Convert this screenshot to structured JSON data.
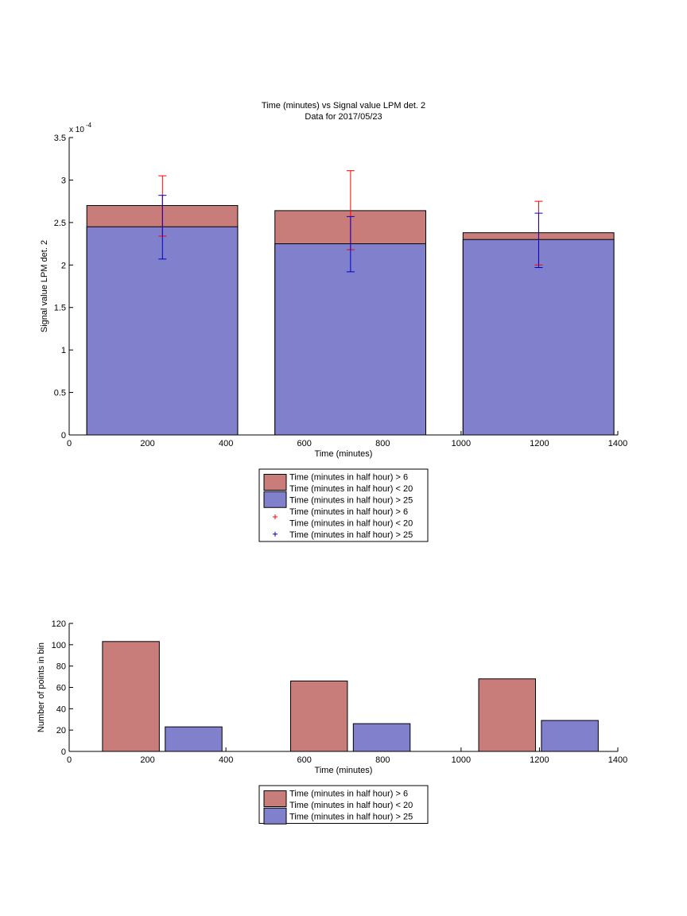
{
  "chart_data": [
    {
      "type": "bar",
      "title": "Time (minutes) vs Signal value LPM det. 2",
      "subtitle": "Data for 2017/05/23",
      "xlabel": "Time (minutes)",
      "ylabel": "Signal value LPM det. 2",
      "y_exponent_label": "x 10",
      "y_exponent_power": "-4",
      "xlim": [
        0,
        1400
      ],
      "ylim": [
        0,
        3.5
      ],
      "x_ticks": [
        0,
        200,
        400,
        600,
        800,
        1000,
        1200,
        1400
      ],
      "x_tick_labels": [
        "0",
        "200",
        "400",
        "600",
        "800",
        "1000",
        "1200",
        "1400"
      ],
      "y_ticks": [
        0,
        0.5,
        1,
        1.5,
        2,
        2.5,
        3,
        3.5
      ],
      "y_tick_labels": [
        "0",
        "0.5",
        "1",
        "1.5",
        "2",
        "2.5",
        "3",
        "3.5"
      ],
      "grid": false,
      "legend_position": "below",
      "bars": [
        {
          "x0": 45,
          "x1": 430,
          "red": 2.7,
          "blue": 2.45
        },
        {
          "x0": 525,
          "x1": 910,
          "red": 2.64,
          "blue": 2.25
        },
        {
          "x0": 1005,
          "x1": 1390,
          "red": 2.38,
          "blue": 2.3
        }
      ],
      "error_bars": [
        {
          "series": "red",
          "x": 238,
          "low": 2.34,
          "high": 3.05
        },
        {
          "series": "blue",
          "x": 238,
          "low": 2.07,
          "high": 2.82
        },
        {
          "series": "red",
          "x": 718,
          "low": 2.18,
          "high": 3.11
        },
        {
          "series": "blue",
          "x": 718,
          "low": 1.92,
          "high": 2.57
        },
        {
          "series": "red",
          "x": 1198,
          "low": 2.0,
          "high": 2.75
        },
        {
          "series": "blue",
          "x": 1198,
          "low": 1.97,
          "high": 2.61
        }
      ],
      "legend": [
        {
          "kind": "patch",
          "color": "#c97d7b",
          "lines": [
            "Time (minutes in half hour) > 6",
            "Time (minutes in half hour) < 20"
          ]
        },
        {
          "kind": "patch",
          "color": "#8080cc",
          "lines": [
            "Time (minutes in half hour) > 25"
          ]
        },
        {
          "kind": "marker",
          "color": "#ff0000",
          "lines": [
            "Time (minutes in half hour) > 6",
            "Time (minutes in half hour) < 20"
          ]
        },
        {
          "kind": "marker",
          "color": "#0000cc",
          "lines": [
            "Time (minutes in half hour) > 25"
          ]
        }
      ]
    },
    {
      "type": "bar",
      "xlabel": "Time (minutes)",
      "ylabel": "Number of points in bin",
      "xlim": [
        0,
        1400
      ],
      "ylim": [
        0,
        120
      ],
      "x_ticks": [
        0,
        200,
        400,
        600,
        800,
        1000,
        1200,
        1400
      ],
      "x_tick_labels": [
        "0",
        "200",
        "400",
        "600",
        "800",
        "1000",
        "1200",
        "1400"
      ],
      "y_ticks": [
        0,
        20,
        40,
        60,
        80,
        100,
        120
      ],
      "y_tick_labels": [
        "0",
        "20",
        "40",
        "60",
        "80",
        "100",
        "120"
      ],
      "grid": false,
      "legend_position": "below",
      "bars": [
        {
          "series": "red",
          "x0": 85,
          "x1": 230,
          "value": 103
        },
        {
          "series": "blue",
          "x0": 245,
          "x1": 390,
          "value": 23
        },
        {
          "series": "red",
          "x0": 565,
          "x1": 710,
          "value": 66
        },
        {
          "series": "blue",
          "x0": 725,
          "x1": 870,
          "value": 26
        },
        {
          "series": "red",
          "x0": 1045,
          "x1": 1190,
          "value": 68
        },
        {
          "series": "blue",
          "x0": 1205,
          "x1": 1350,
          "value": 29
        }
      ],
      "legend": [
        {
          "kind": "patch",
          "color": "#c97d7b",
          "lines": [
            "Time (minutes in half hour) > 6",
            "Time (minutes in half hour) < 20"
          ]
        },
        {
          "kind": "patch",
          "color": "#8080cc",
          "lines": [
            "Time (minutes in half hour) > 25"
          ]
        }
      ]
    }
  ],
  "colors": {
    "red_bar": "#c97d7b",
    "blue_bar": "#8080cc",
    "red_error": "#ff0000",
    "blue_error": "#0000cc"
  }
}
